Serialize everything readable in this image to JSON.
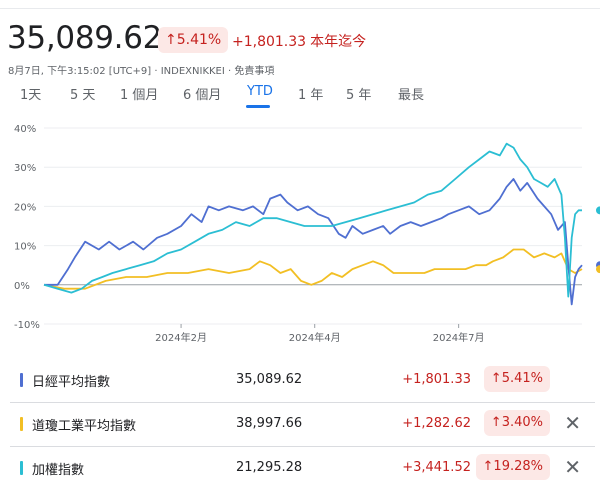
{
  "header": {
    "price": "35,089.62",
    "percent": "5.41%",
    "change": "+1,801.33",
    "period_label": "本年迄今",
    "meta": "8月7日, 下午3:15:02 [UTC+9] · INDEXNIKKEI · 免責事項"
  },
  "tabs": [
    {
      "label": "1天"
    },
    {
      "label": "5 天"
    },
    {
      "label": "1 個月"
    },
    {
      "label": "6 個月"
    },
    {
      "label": "YTD",
      "active": true
    },
    {
      "label": "1 年"
    },
    {
      "label": "5 年"
    },
    {
      "label": "最長"
    }
  ],
  "icons": {
    "up_arrow": "arrow-up-icon",
    "close": "close-icon"
  },
  "chart_data": {
    "type": "line",
    "y_ticks": [
      "40%",
      "30%",
      "20%",
      "10%",
      "0%",
      "-10%"
    ],
    "x_ticks": [
      "2024年2月",
      "2024年4月",
      "2024年7月"
    ],
    "ylim": [
      -10,
      40
    ],
    "legend": "none",
    "grid": true,
    "series": [
      {
        "name": "日經平均指數",
        "color": "#4f6fd1",
        "points": [
          [
            0,
            0
          ],
          [
            4,
            0
          ],
          [
            7,
            4
          ],
          [
            9,
            7
          ],
          [
            12,
            11
          ],
          [
            16,
            9
          ],
          [
            19,
            11
          ],
          [
            22,
            9
          ],
          [
            26,
            11
          ],
          [
            29,
            9
          ],
          [
            33,
            12
          ],
          [
            36,
            13
          ],
          [
            40,
            15
          ],
          [
            43,
            18
          ],
          [
            46,
            16
          ],
          [
            48,
            20
          ],
          [
            51,
            19
          ],
          [
            54,
            20
          ],
          [
            58,
            19
          ],
          [
            61,
            20
          ],
          [
            64,
            18
          ],
          [
            66,
            22
          ],
          [
            69,
            23
          ],
          [
            71,
            21
          ],
          [
            74,
            19
          ],
          [
            77,
            20
          ],
          [
            80,
            18
          ],
          [
            83,
            17
          ],
          [
            86,
            13
          ],
          [
            88,
            12
          ],
          [
            90,
            15
          ],
          [
            93,
            13
          ],
          [
            96,
            14
          ],
          [
            99,
            15
          ],
          [
            101,
            13
          ],
          [
            104,
            15
          ],
          [
            107,
            16
          ],
          [
            110,
            15
          ],
          [
            113,
            16
          ],
          [
            116,
            17
          ],
          [
            118,
            18
          ],
          [
            121,
            19
          ],
          [
            124,
            20
          ],
          [
            127,
            18
          ],
          [
            130,
            19
          ],
          [
            133,
            22
          ],
          [
            135,
            25
          ],
          [
            137,
            27
          ],
          [
            139,
            24
          ],
          [
            141,
            26
          ],
          [
            144,
            22
          ],
          [
            146,
            20
          ],
          [
            148,
            18
          ],
          [
            150,
            14
          ],
          [
            152,
            16
          ],
          [
            153,
            5
          ],
          [
            154,
            -5
          ],
          [
            155,
            2
          ],
          [
            156,
            4
          ],
          [
            157,
            5
          ]
        ]
      },
      {
        "name": "道瓊工業平均指數",
        "color": "#f2bf24",
        "points": [
          [
            0,
            0
          ],
          [
            6,
            -1
          ],
          [
            12,
            -1
          ],
          [
            18,
            1
          ],
          [
            24,
            2
          ],
          [
            30,
            2
          ],
          [
            36,
            3
          ],
          [
            42,
            3
          ],
          [
            48,
            4
          ],
          [
            54,
            3
          ],
          [
            60,
            4
          ],
          [
            63,
            6
          ],
          [
            66,
            5
          ],
          [
            69,
            3
          ],
          [
            72,
            4
          ],
          [
            75,
            1
          ],
          [
            78,
            0
          ],
          [
            81,
            1
          ],
          [
            84,
            3
          ],
          [
            87,
            2
          ],
          [
            90,
            4
          ],
          [
            93,
            5
          ],
          [
            96,
            6
          ],
          [
            99,
            5
          ],
          [
            102,
            3
          ],
          [
            105,
            3
          ],
          [
            108,
            3
          ],
          [
            111,
            3
          ],
          [
            114,
            4
          ],
          [
            117,
            4
          ],
          [
            120,
            4
          ],
          [
            123,
            4
          ],
          [
            126,
            5
          ],
          [
            129,
            5
          ],
          [
            131,
            6
          ],
          [
            134,
            7
          ],
          [
            137,
            9
          ],
          [
            140,
            9
          ],
          [
            143,
            7
          ],
          [
            146,
            8
          ],
          [
            149,
            7
          ],
          [
            151,
            8
          ],
          [
            153,
            4
          ],
          [
            155,
            3
          ],
          [
            157,
            4
          ]
        ]
      },
      {
        "name": "加權指數",
        "color": "#2bbed3",
        "points": [
          [
            0,
            0
          ],
          [
            4,
            -1
          ],
          [
            8,
            -2
          ],
          [
            11,
            -1
          ],
          [
            14,
            1
          ],
          [
            17,
            2
          ],
          [
            20,
            3
          ],
          [
            24,
            4
          ],
          [
            28,
            5
          ],
          [
            32,
            6
          ],
          [
            36,
            8
          ],
          [
            40,
            9
          ],
          [
            44,
            11
          ],
          [
            48,
            13
          ],
          [
            52,
            14
          ],
          [
            56,
            16
          ],
          [
            60,
            15
          ],
          [
            64,
            17
          ],
          [
            68,
            17
          ],
          [
            72,
            16
          ],
          [
            76,
            15
          ],
          [
            80,
            15
          ],
          [
            84,
            15
          ],
          [
            88,
            16
          ],
          [
            92,
            17
          ],
          [
            96,
            18
          ],
          [
            100,
            19
          ],
          [
            104,
            20
          ],
          [
            108,
            21
          ],
          [
            112,
            23
          ],
          [
            116,
            24
          ],
          [
            120,
            27
          ],
          [
            124,
            30
          ],
          [
            127,
            32
          ],
          [
            130,
            34
          ],
          [
            133,
            33
          ],
          [
            135,
            36
          ],
          [
            137,
            35
          ],
          [
            139,
            32
          ],
          [
            141,
            30
          ],
          [
            143,
            27
          ],
          [
            145,
            26
          ],
          [
            147,
            25
          ],
          [
            149,
            27
          ],
          [
            151,
            23
          ],
          [
            152,
            12
          ],
          [
            153,
            -3
          ],
          [
            154,
            12
          ],
          [
            155,
            18
          ],
          [
            156,
            19
          ],
          [
            157,
            19
          ]
        ]
      }
    ]
  },
  "comparison": [
    {
      "name": "日經平均指數",
      "value": "35,089.62",
      "change": "+1,801.33",
      "percent": "5.41%",
      "color": "#4f6fd1",
      "removable": false
    },
    {
      "name": "道瓊工業平均指數",
      "value": "38,997.66",
      "change": "+1,282.62",
      "percent": "3.40%",
      "color": "#f2bf24",
      "removable": true
    },
    {
      "name": "加權指數",
      "value": "21,295.28",
      "change": "+3,441.52",
      "percent": "19.28%",
      "color": "#2bbed3",
      "removable": true
    }
  ]
}
